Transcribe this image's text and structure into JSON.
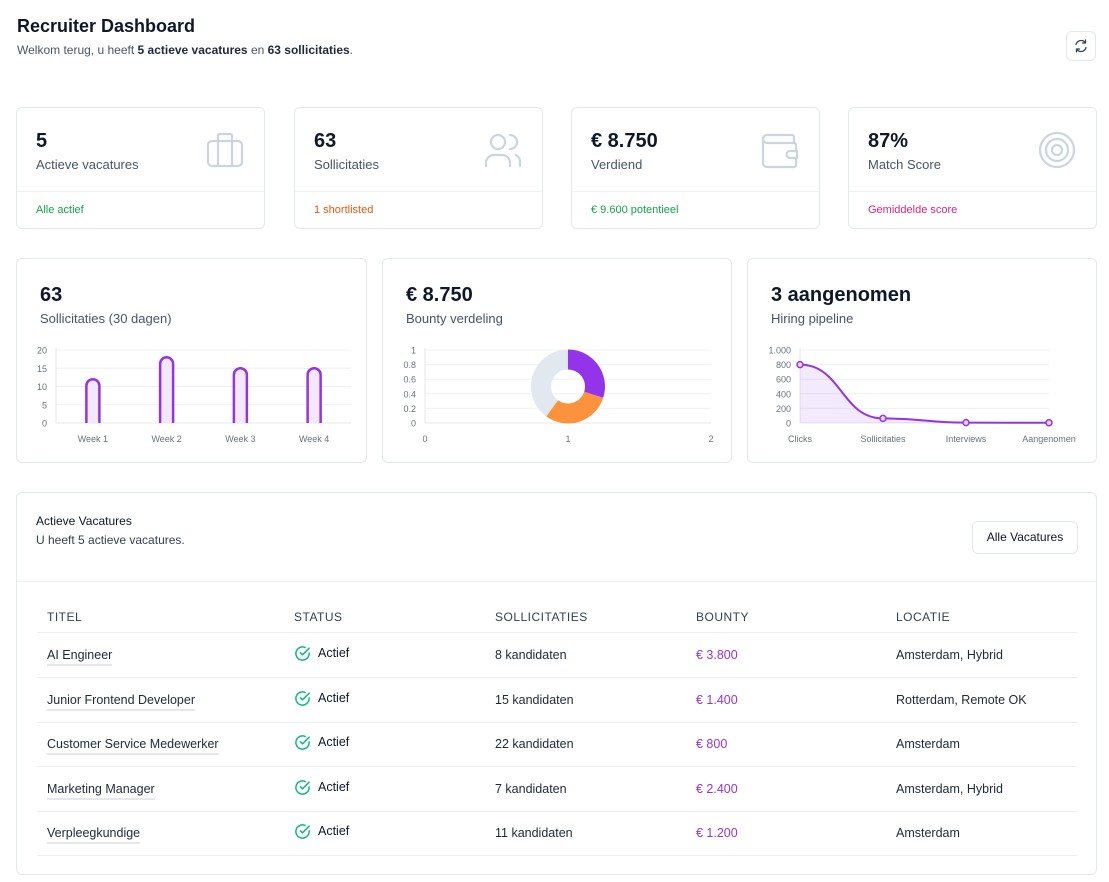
{
  "header": {
    "title": "Recruiter Dashboard",
    "subtitle": [
      "Welkom terug, u heeft ",
      "5 actieve vacatures",
      " en ",
      "63 sollicitaties",
      "."
    ]
  },
  "stats": [
    {
      "value": "5",
      "label": "Actieve vacatures",
      "footer": "Alle actief",
      "footer_color": "#16a34a"
    },
    {
      "value": "63",
      "label": "Sollicitaties",
      "footer": "1 shortlisted",
      "footer_color": "#ea580c"
    },
    {
      "value": "€ 8.750",
      "label": "Verdiend",
      "footer": "€ 9.600 potentieel",
      "footer_color": "#16a34a"
    },
    {
      "value": "87%",
      "label": "Match Score",
      "footer": "Gemiddelde score",
      "footer_color": "#db2777"
    }
  ],
  "cards": [
    {
      "headline": "63",
      "caption": "Sollicitaties (30 dagen)",
      "chart": {
        "type": "bar",
        "categories": [
          "Week 1",
          "Week 2",
          "Week 3",
          "Week 4"
        ],
        "values": [
          12,
          18,
          15,
          15
        ],
        "color": "#9333ea",
        "ylim": [
          0,
          20
        ],
        "yticks": [
          0,
          5,
          10,
          15,
          20
        ],
        "grid": true
      }
    },
    {
      "headline": "€ 8.750",
      "caption": "Bounty verdeling",
      "chart": {
        "type": "pie",
        "values": [
          30,
          30,
          40
        ],
        "colors": [
          "#9333ea",
          "#fb923c",
          "#e2e8f0"
        ],
        "xlim": [
          0,
          2
        ],
        "xticks": [
          0,
          1,
          2
        ],
        "ylim": [
          0,
          1
        ],
        "yticks": [
          0,
          0.2,
          0.4,
          0.6,
          0.8,
          1
        ],
        "grid": true
      }
    },
    {
      "headline": "3 aangenomen",
      "caption": "Hiring pipeline",
      "chart": {
        "type": "line",
        "categories": [
          "Clicks",
          "Sollicitaties",
          "Interviews",
          "Aangenomen"
        ],
        "values": [
          800,
          63,
          5,
          3
        ],
        "color": "#9333ea",
        "ylim": [
          0,
          1000
        ],
        "yticks": [
          0,
          200,
          400,
          600,
          800,
          {
            "value": 1000,
            "label": "1.000"
          }
        ],
        "grid": true
      }
    }
  ],
  "table": {
    "title": "Actieve Vacatures",
    "subtitle": "U heeft 5 actieve vacatures.",
    "button": "Alle Vacatures",
    "columns": [
      "TITEL",
      "STATUS",
      "SOLLICITATIES",
      "BOUNTY",
      "LOCATIE"
    ],
    "rows": [
      [
        "AI Engineer",
        "Actief",
        "8 kandidaten",
        "€ 3.800",
        "Amsterdam, Hybrid"
      ],
      [
        "Junior Frontend Developer",
        "Actief",
        "15 kandidaten",
        "€ 1.400",
        "Rotterdam, Remote OK"
      ],
      [
        "Customer Service Medewerker",
        "Actief",
        "22 kandidaten",
        "€ 800",
        "Amsterdam"
      ],
      [
        "Marketing Manager",
        "Actief",
        "7 kandidaten",
        "€ 2.400",
        "Amsterdam, Hybrid"
      ],
      [
        "Verpleegkundige",
        "Actief",
        "11 kandidaten",
        "€ 1.200",
        "Amsterdam"
      ]
    ]
  }
}
